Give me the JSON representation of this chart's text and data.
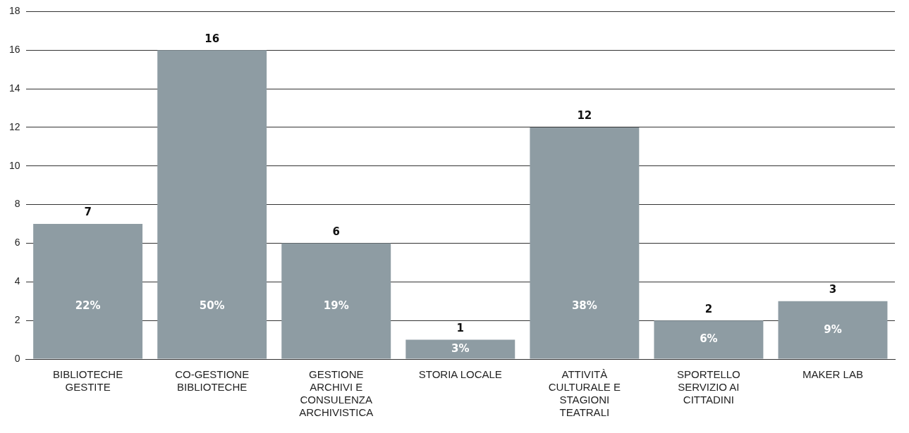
{
  "chart_data": {
    "type": "bar",
    "categories": [
      "BIBLIOTECHE GESTITE",
      "CO-GESTIONE BIBLIOTECHE",
      "GESTIONE ARCHIVI E CONSULENZA ARCHIVISTICA",
      "STORIA LOCALE",
      "ATTIVITÀ CULTURALE E STAGIONI TEATRALI",
      "SPORTELLO SERVIZIO AI CITTADINI",
      "MAKER LAB"
    ],
    "values": [
      7,
      16,
      6,
      1,
      12,
      2,
      3
    ],
    "color": "#8e9ca3",
    "data_labels": true,
    "annotations": [
      "22%",
      "50%",
      "19%",
      "3%",
      "38%",
      "6%",
      "9%"
    ],
    "ylim": [
      0,
      18
    ],
    "yticks": [
      0,
      2,
      4,
      6,
      8,
      10,
      12,
      14,
      16,
      18
    ],
    "grid": "y"
  }
}
